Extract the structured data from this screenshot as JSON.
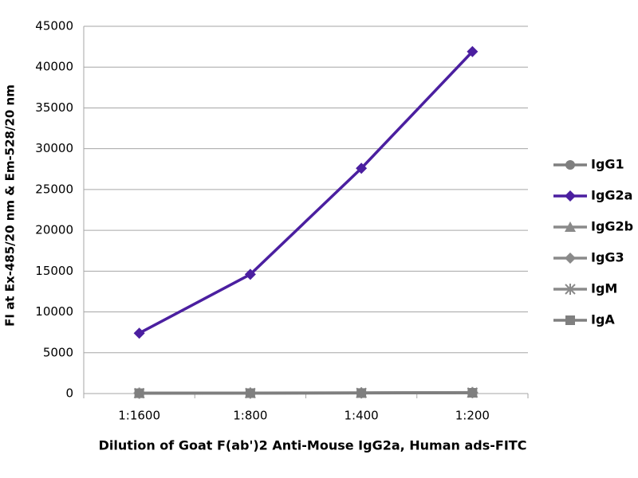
{
  "chart_data": {
    "type": "line",
    "y_label": "FI at Ex-485/20 nm & Em-528/20 nm",
    "x_label": "Dilution of Goat F(ab')2 Anti-Mouse IgG2a, Human ads-FITC",
    "categories": [
      "1:1600",
      "1:800",
      "1:400",
      "1:200"
    ],
    "series": [
      {
        "name": "IgG1",
        "color": "#7f7f7f",
        "marker": "circle",
        "values": [
          60,
          70,
          90,
          130
        ]
      },
      {
        "name": "IgG2a",
        "color": "#4b1fa0",
        "marker": "diamond",
        "values": [
          7400,
          14600,
          27600,
          41900
        ]
      },
      {
        "name": "IgG2b",
        "color": "#8a8a8a",
        "marker": "triangle",
        "values": [
          50,
          60,
          80,
          110
        ]
      },
      {
        "name": "IgG3",
        "color": "#8a8a8a",
        "marker": "diamond",
        "values": [
          40,
          50,
          70,
          100
        ]
      },
      {
        "name": "IgM",
        "color": "#8a8a8a",
        "marker": "star",
        "values": [
          50,
          60,
          80,
          120
        ]
      },
      {
        "name": "IgA",
        "color": "#7f7f7f",
        "marker": "square",
        "values": [
          40,
          50,
          60,
          90
        ]
      }
    ],
    "ylim": [
      0,
      45000
    ],
    "yticks": [
      0,
      5000,
      10000,
      15000,
      20000,
      25000,
      30000,
      35000,
      40000,
      45000
    ],
    "grid": true
  }
}
